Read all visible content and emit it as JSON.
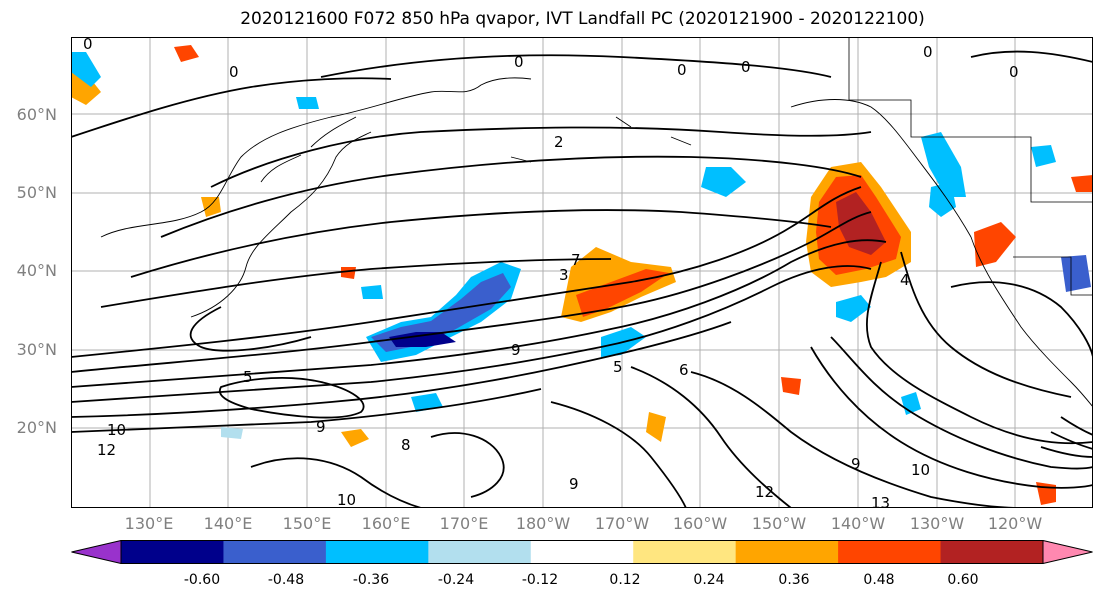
{
  "title": "2020121600 F072 850 hPa qvapor, IVT Landfall PC (2020121900 - 2020122100)",
  "lat_labels": [
    "60°N",
    "50°N",
    "40°N",
    "30°N",
    "20°N"
  ],
  "lon_labels": [
    "130°E",
    "140°E",
    "150°E",
    "160°E",
    "170°E",
    "180°W",
    "170°W",
    "160°W",
    "150°W",
    "140°W",
    "130°W",
    "120°W"
  ],
  "colorbar": {
    "colors": [
      "#9932cc",
      "#00008b",
      "#3a5fcd",
      "#00bfff",
      "#b2dfee",
      "#ffffff",
      "#ffe680",
      "#ffa500",
      "#ff4500",
      "#b22222",
      "#ff88b0"
    ],
    "tick_labels": [
      "-0.60",
      "-0.48",
      "-0.36",
      "-0.24",
      "-0.12",
      "0.12",
      "0.24",
      "0.36",
      "0.48",
      "0.60"
    ]
  },
  "contour_labels": [
    "0",
    "0",
    "0",
    "0",
    "0",
    "0",
    "0",
    "2",
    "3",
    "4",
    "5",
    "5",
    "6",
    "7",
    "8",
    "9",
    "9",
    "9",
    "9",
    "10",
    "10",
    "10",
    "12",
    "12",
    "13"
  ]
}
